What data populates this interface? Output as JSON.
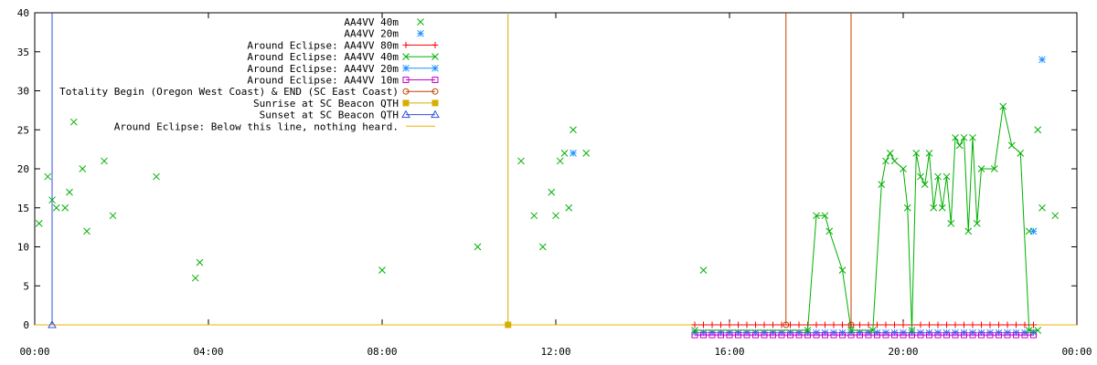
{
  "chart_data": {
    "type": "scatter",
    "title": "",
    "xlabel": "",
    "ylabel": "",
    "xlim": [
      "00:00",
      "24:00"
    ],
    "ylim": [
      0,
      40
    ],
    "x_ticks": [
      "00:00",
      "04:00",
      "08:00",
      "12:00",
      "16:00",
      "20:00",
      "00:00"
    ],
    "y_ticks": [
      0,
      5,
      10,
      15,
      20,
      25,
      30,
      35,
      40
    ],
    "grid": false,
    "legend_position": "top-right",
    "series": [
      {
        "name": "AA4VV 40m",
        "style": "points",
        "marker": "x",
        "color": "#00b000",
        "points": [
          [
            "00:06",
            13
          ],
          [
            "00:18",
            19
          ],
          [
            "00:24",
            16
          ],
          [
            "00:30",
            15
          ],
          [
            "00:42",
            15
          ],
          [
            "00:48",
            17
          ],
          [
            "00:54",
            26
          ],
          [
            "01:06",
            20
          ],
          [
            "01:12",
            12
          ],
          [
            "01:36",
            21
          ],
          [
            "01:48",
            14
          ],
          [
            "02:48",
            19
          ],
          [
            "03:42",
            6
          ],
          [
            "03:48",
            8
          ],
          [
            "08:00",
            7
          ],
          [
            "10:12",
            10
          ],
          [
            "11:12",
            21
          ],
          [
            "11:30",
            14
          ],
          [
            "11:42",
            10
          ],
          [
            "11:54",
            17
          ],
          [
            "12:00",
            14
          ],
          [
            "12:06",
            21
          ],
          [
            "12:12",
            22
          ],
          [
            "12:18",
            15
          ],
          [
            "12:24",
            25
          ],
          [
            "12:42",
            22
          ],
          [
            "15:24",
            7
          ],
          [
            "22:54",
            12
          ],
          [
            "23:06",
            25
          ],
          [
            "23:12",
            15
          ],
          [
            "23:30",
            14
          ]
        ]
      },
      {
        "name": "AA4VV 20m",
        "style": "points",
        "marker": "star",
        "color": "#1e90ff",
        "points": [
          [
            "12:24",
            22
          ],
          [
            "23:00",
            12
          ],
          [
            "23:12",
            34
          ]
        ]
      },
      {
        "name": "Around Eclipse: AA4VV 80m",
        "style": "linespoints",
        "marker": "plus",
        "color": "#ff0000",
        "x_start": "15:12",
        "x_end": "23:00",
        "x_step_minutes": 12,
        "y": 0
      },
      {
        "name": "Around Eclipse: AA4VV 40m",
        "style": "linespoints",
        "marker": "x",
        "color": "#00b000",
        "points": [
          [
            "15:12",
            -0.7
          ],
          [
            "17:48",
            -0.7
          ],
          [
            "18:00",
            14
          ],
          [
            "18:12",
            14
          ],
          [
            "18:18",
            12
          ],
          [
            "18:36",
            7
          ],
          [
            "18:48",
            -0.7
          ],
          [
            "19:18",
            -0.7
          ],
          [
            "19:30",
            18
          ],
          [
            "19:36",
            21
          ],
          [
            "19:42",
            22
          ],
          [
            "19:48",
            21
          ],
          [
            "20:00",
            20
          ],
          [
            "20:06",
            15
          ],
          [
            "20:12",
            -0.7
          ],
          [
            "20:18",
            22
          ],
          [
            "20:24",
            19
          ],
          [
            "20:30",
            18
          ],
          [
            "20:36",
            22
          ],
          [
            "20:42",
            15
          ],
          [
            "20:48",
            19
          ],
          [
            "20:54",
            15
          ],
          [
            "21:00",
            19
          ],
          [
            "21:06",
            13
          ],
          [
            "21:12",
            24
          ],
          [
            "21:18",
            23
          ],
          [
            "21:24",
            24
          ],
          [
            "21:30",
            12
          ],
          [
            "21:36",
            24
          ],
          [
            "21:42",
            13
          ],
          [
            "21:48",
            20
          ],
          [
            "22:06",
            20
          ],
          [
            "22:18",
            28
          ],
          [
            "22:30",
            23
          ],
          [
            "22:42",
            22
          ],
          [
            "22:54",
            -0.7
          ],
          [
            "23:06",
            -0.7
          ]
        ]
      },
      {
        "name": "Around Eclipse: AA4VV 20m",
        "style": "linespoints",
        "marker": "star",
        "color": "#1e90ff",
        "x_start": "15:12",
        "x_end": "23:00",
        "x_step_minutes": 12,
        "y": -1.0
      },
      {
        "name": "Around Eclipse: AA4VV 10m",
        "style": "linespoints",
        "marker": "square",
        "color": "#cc00cc",
        "x_start": "15:12",
        "x_end": "23:00",
        "x_step_minutes": 12,
        "y": -1.3
      },
      {
        "name": "Totality Begin (Oregon West Coast) & END (SC East Coast)",
        "style": "impulses",
        "marker": "circle",
        "color": "#c04000",
        "points": [
          [
            "17:18",
            0
          ],
          [
            "18:48",
            0
          ]
        ]
      },
      {
        "name": "Sunrise at SC Beacon QTH",
        "style": "impulses",
        "marker": "filled-square",
        "color": "#d4b000",
        "points": [
          [
            "10:54",
            0
          ]
        ]
      },
      {
        "name": "Sunset at SC Beacon QTH",
        "style": "impulses",
        "marker": "triangle",
        "color": "#3050e0",
        "points": [
          [
            "00:24",
            0
          ]
        ]
      },
      {
        "name": "Around Eclipse: Below this line, nothing heard.",
        "style": "line",
        "marker": "none",
        "color": "#f0b000",
        "y": 0
      }
    ]
  }
}
